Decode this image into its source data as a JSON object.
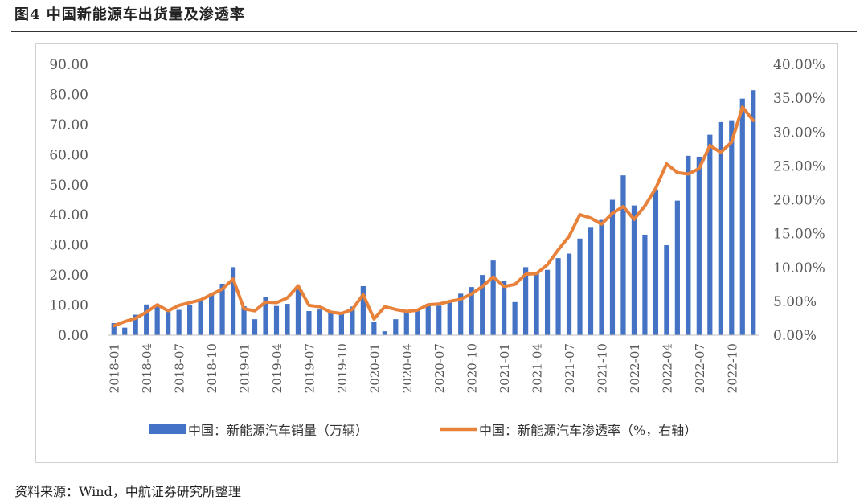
{
  "figure": {
    "title": "图4  中国新能源车出货量及渗透率",
    "source": "资料来源：Wind，中航证券研究所整理"
  },
  "chart_data": {
    "type": "bar",
    "title": "",
    "x_tick_labels": [
      "2018-01",
      "2018-04",
      "2018-07",
      "2018-10",
      "2019-01",
      "2019-04",
      "2019-07",
      "2019-10",
      "2020-01",
      "2020-04",
      "2020-07",
      "2020-10",
      "2021-01",
      "2021-04",
      "2021-07",
      "2021-10",
      "2022-01",
      "2022-04",
      "2022-07",
      "2022-10"
    ],
    "categories": [
      "2018-01",
      "2018-02",
      "2018-03",
      "2018-04",
      "2018-05",
      "2018-06",
      "2018-07",
      "2018-08",
      "2018-09",
      "2018-10",
      "2018-11",
      "2018-12",
      "2019-01",
      "2019-02",
      "2019-03",
      "2019-04",
      "2019-05",
      "2019-06",
      "2019-07",
      "2019-08",
      "2019-09",
      "2019-10",
      "2019-11",
      "2019-12",
      "2020-01",
      "2020-02",
      "2020-03",
      "2020-04",
      "2020-05",
      "2020-06",
      "2020-07",
      "2020-08",
      "2020-09",
      "2020-10",
      "2020-11",
      "2020-12",
      "2021-01",
      "2021-02",
      "2021-03",
      "2021-04",
      "2021-05",
      "2021-06",
      "2021-07",
      "2021-08",
      "2021-09",
      "2021-10",
      "2021-11",
      "2021-12",
      "2022-01",
      "2022-02",
      "2022-03",
      "2022-04",
      "2022-05",
      "2022-06",
      "2022-07",
      "2022-08",
      "2022-09",
      "2022-10",
      "2022-11",
      "2022-12"
    ],
    "series": [
      {
        "name": "中国：新能源汽车销量（万辆）",
        "type": "bar",
        "axis": "left",
        "color": "#4472C4",
        "values": [
          4.0,
          2.5,
          6.8,
          10.2,
          10.2,
          8.4,
          8.4,
          10.1,
          12.1,
          13.8,
          17.1,
          22.6,
          9.6,
          5.3,
          12.6,
          9.7,
          10.4,
          15.2,
          8.0,
          8.5,
          8.0,
          7.5,
          9.5,
          16.3,
          4.4,
          1.3,
          5.3,
          7.2,
          8.2,
          10.4,
          9.8,
          10.9,
          13.8,
          16.0,
          20.0,
          24.8,
          17.9,
          11.0,
          22.6,
          20.6,
          21.7,
          25.6,
          27.1,
          32.1,
          35.7,
          38.3,
          45.0,
          53.1,
          43.1,
          33.4,
          48.4,
          29.9,
          44.7,
          59.6,
          59.3,
          66.6,
          70.8,
          71.4,
          78.6,
          81.4
        ]
      },
      {
        "name": "中国：新能源汽车渗透率（%，右轴）",
        "type": "line",
        "axis": "right",
        "color": "#E8813A",
        "values": [
          1.4,
          2.0,
          2.5,
          3.4,
          4.5,
          3.6,
          4.4,
          4.8,
          5.2,
          6.0,
          6.8,
          8.3,
          3.9,
          3.6,
          4.9,
          4.8,
          5.5,
          7.3,
          4.4,
          4.2,
          3.4,
          3.2,
          3.8,
          6.0,
          2.4,
          4.2,
          3.8,
          3.5,
          3.7,
          4.5,
          4.6,
          5.0,
          5.3,
          6.1,
          7.2,
          8.6,
          7.2,
          7.5,
          9.0,
          9.1,
          10.4,
          12.6,
          14.6,
          17.8,
          17.3,
          16.4,
          18.0,
          19.0,
          17.1,
          19.1,
          21.7,
          25.3,
          24.0,
          23.8,
          24.6,
          28.0,
          27.0,
          28.5,
          33.7,
          31.7
        ]
      }
    ],
    "left_axis": {
      "ylim": [
        0,
        90
      ],
      "tick_labels": [
        "0.00",
        "10.00",
        "20.00",
        "30.00",
        "40.00",
        "50.00",
        "60.00",
        "70.00",
        "80.00",
        "90.00"
      ]
    },
    "right_axis": {
      "ylim": [
        0,
        40
      ],
      "tick_labels": [
        "0.00%",
        "5.00%",
        "10.00%",
        "15.00%",
        "20.00%",
        "25.00%",
        "30.00%",
        "35.00%",
        "40.00%"
      ]
    },
    "grid": false,
    "legend_position": "bottom"
  }
}
